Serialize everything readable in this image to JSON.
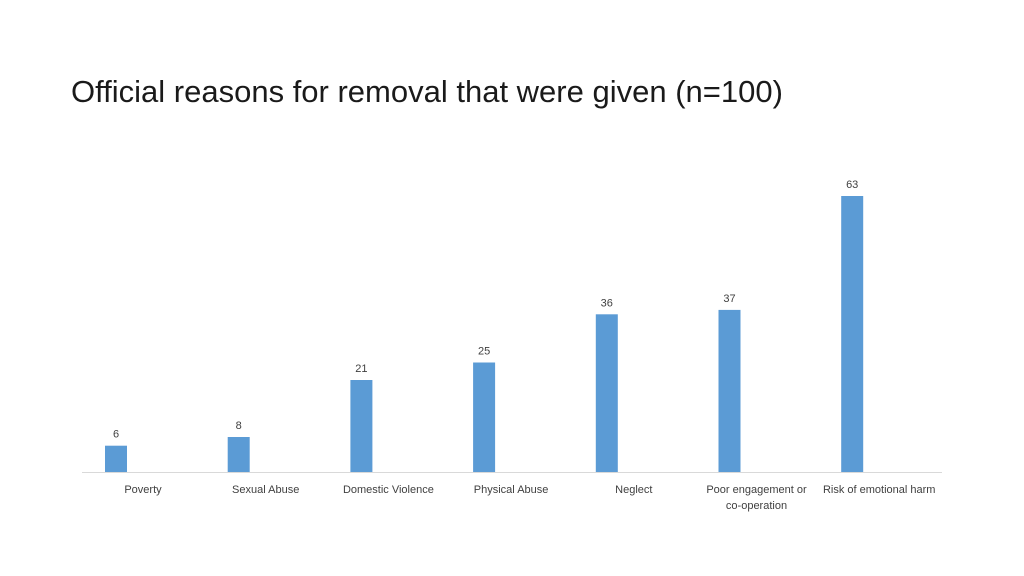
{
  "title": "Official reasons for removal that were given (n=100)",
  "chart_data": {
    "type": "bar",
    "title": "Official reasons for removal that were given (n=100)",
    "categories": [
      [
        "Poverty"
      ],
      [
        "Sexual Abuse"
      ],
      [
        "Domestic Violence"
      ],
      [
        "Physical Abuse"
      ],
      [
        "Neglect"
      ],
      [
        "Poor engagement or",
        "co-operation"
      ],
      [
        "Risk of emotional harm"
      ]
    ],
    "values": [
      6,
      8,
      21,
      25,
      36,
      37,
      63
    ],
    "xlabel": "",
    "ylabel": "",
    "ylim": [
      0,
      63
    ],
    "grid": false,
    "legend": "none",
    "data_labels": true,
    "bar_color": "#5b9bd5",
    "axis_color": "#d9d9d9"
  }
}
